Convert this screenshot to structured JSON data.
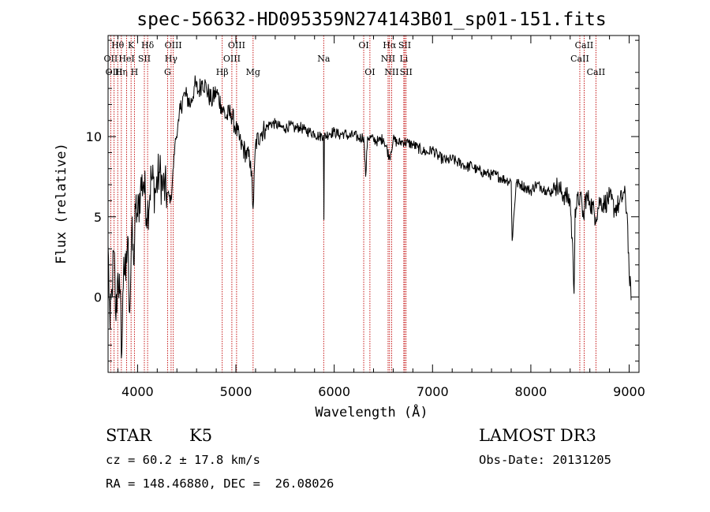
{
  "chart_data": {
    "type": "line",
    "title": "spec-56632-HD095359N274143B01_sp01-151.fits",
    "xlabel": "Wavelength (Å)",
    "ylabel": "Flux (relative)",
    "xlim": [
      3700,
      9100
    ],
    "ylim": [
      -4.7,
      16.3
    ],
    "x_ticks": [
      4000,
      5000,
      6000,
      7000,
      8000,
      9000
    ],
    "y_ticks": [
      0,
      5,
      10
    ],
    "series": [
      {
        "name": "spectrum",
        "x": [
          3700,
          3720,
          3740,
          3760,
          3780,
          3800,
          3820,
          3840,
          3860,
          3880,
          3900,
          3920,
          3940,
          3960,
          3980,
          4000,
          4030,
          4060,
          4100,
          4140,
          4180,
          4220,
          4260,
          4300,
          4340,
          4380,
          4420,
          4460,
          4500,
          4540,
          4580,
          4620,
          4660,
          4700,
          4750,
          4800,
          4850,
          4900,
          4950,
          5000,
          5050,
          5100,
          5150,
          5175,
          5200,
          5250,
          5300,
          5350,
          5400,
          5450,
          5500,
          5550,
          5600,
          5650,
          5700,
          5750,
          5800,
          5850,
          5890,
          5895,
          5900,
          5950,
          6000,
          6050,
          6100,
          6150,
          6200,
          6250,
          6300,
          6320,
          6340,
          6400,
          6450,
          6500,
          6563,
          6600,
          6650,
          6700,
          6750,
          6800,
          6850,
          6900,
          6950,
          7000,
          7050,
          7100,
          7150,
          7200,
          7250,
          7300,
          7350,
          7400,
          7450,
          7500,
          7550,
          7600,
          7650,
          7700,
          7750,
          7800,
          7810,
          7850,
          7900,
          7950,
          8000,
          8050,
          8100,
          8150,
          8200,
          8250,
          8300,
          8350,
          8400,
          8430,
          8440,
          8450,
          8500,
          8542,
          8550,
          8600,
          8662,
          8700,
          8750,
          8800,
          8850,
          8900,
          8950,
          8980,
          9000,
          9020
        ],
        "y": [
          3.2,
          -2.0,
          0.5,
          2.8,
          -1.5,
          1.5,
          0.2,
          -3.5,
          2.5,
          1.0,
          3.8,
          -1.0,
          4.0,
          2.0,
          5.5,
          5.0,
          6.8,
          7.2,
          5.2,
          7.5,
          6.5,
          7.8,
          6.8,
          6.5,
          6.0,
          9.5,
          11.0,
          12.5,
          12.5,
          12.0,
          13.2,
          12.8,
          13.5,
          13.0,
          12.2,
          12.8,
          12.0,
          11.2,
          11.5,
          10.5,
          9.5,
          9.0,
          8.5,
          5.5,
          9.5,
          10.2,
          10.5,
          10.8,
          10.8,
          10.6,
          10.5,
          10.7,
          10.5,
          10.6,
          10.4,
          10.3,
          10.2,
          10.0,
          10.1,
          4.8,
          10.0,
          10.2,
          10.3,
          10.1,
          10.2,
          10.0,
          10.1,
          9.9,
          10.0,
          7.5,
          10.0,
          9.8,
          9.7,
          9.9,
          8.7,
          9.8,
          9.6,
          9.7,
          9.6,
          9.5,
          9.3,
          9.1,
          9.0,
          9.2,
          8.8,
          8.6,
          8.5,
          8.6,
          8.4,
          8.3,
          8.1,
          8.2,
          7.9,
          7.8,
          7.7,
          7.6,
          7.6,
          7.4,
          7.3,
          7.2,
          3.5,
          7.1,
          7.0,
          6.8,
          6.6,
          7.0,
          6.9,
          6.7,
          6.5,
          7.0,
          6.6,
          6.3,
          6.0,
          2.2,
          0.2,
          5.5,
          6.3,
          4.8,
          6.2,
          6.0,
          5.0,
          6.0,
          5.8,
          6.2,
          5.5,
          5.8,
          6.5,
          5.2,
          1.5,
          -0.2
        ]
      }
    ],
    "line_markers": [
      {
        "label": "Hθ",
        "x": 3798,
        "row": 1
      },
      {
        "label": "OII",
        "x": 3727,
        "row": 2
      },
      {
        "label": "OIII",
        "x": 3761,
        "row": 3
      },
      {
        "label": "Hη",
        "x": 3835,
        "row": 3
      },
      {
        "label": "HeI",
        "x": 3889,
        "row": 2
      },
      {
        "label": "K",
        "x": 3934,
        "row": 1
      },
      {
        "label": "SII",
        "x": 4069,
        "row": 2
      },
      {
        "label": "H",
        "x": 3968,
        "row": 3
      },
      {
        "label": "Hδ",
        "x": 4102,
        "row": 1
      },
      {
        "label": "OIII",
        "x": 4363,
        "row": 1
      },
      {
        "label": "Hγ",
        "x": 4341,
        "row": 2
      },
      {
        "label": "G",
        "x": 4305,
        "row": 3
      },
      {
        "label": "OIII",
        "x": 5007,
        "row": 1
      },
      {
        "label": "OIII",
        "x": 4959,
        "row": 2
      },
      {
        "label": "Hβ",
        "x": 4861,
        "row": 3
      },
      {
        "label": "Mg",
        "x": 5175,
        "row": 3
      },
      {
        "label": "Na",
        "x": 5893,
        "row": 2
      },
      {
        "label": "OI",
        "x": 6300,
        "row": 1
      },
      {
        "label": "OI",
        "x": 6363,
        "row": 3
      },
      {
        "label": "Hα",
        "x": 6563,
        "row": 1
      },
      {
        "label": "NII",
        "x": 6548,
        "row": 2
      },
      {
        "label": "NII",
        "x": 6584,
        "row": 3
      },
      {
        "label": "SII",
        "x": 6717,
        "row": 1
      },
      {
        "label": "Li",
        "x": 6708,
        "row": 2
      },
      {
        "label": "SII",
        "x": 6731,
        "row": 3
      },
      {
        "label": "CaII",
        "x": 8542,
        "row": 1
      },
      {
        "label": "CaII",
        "x": 8498,
        "row": 2
      },
      {
        "label": "CaII",
        "x": 8662,
        "row": 3
      }
    ]
  },
  "info": {
    "object_type": "STAR",
    "spectral_class": "K5",
    "survey": "LAMOST DR3",
    "cz": "cz = 60.2 ± 17.8 km/s",
    "obs_date": "Obs-Date: 20131205",
    "coords": "RA = 148.46880, DEC =  26.08026"
  }
}
